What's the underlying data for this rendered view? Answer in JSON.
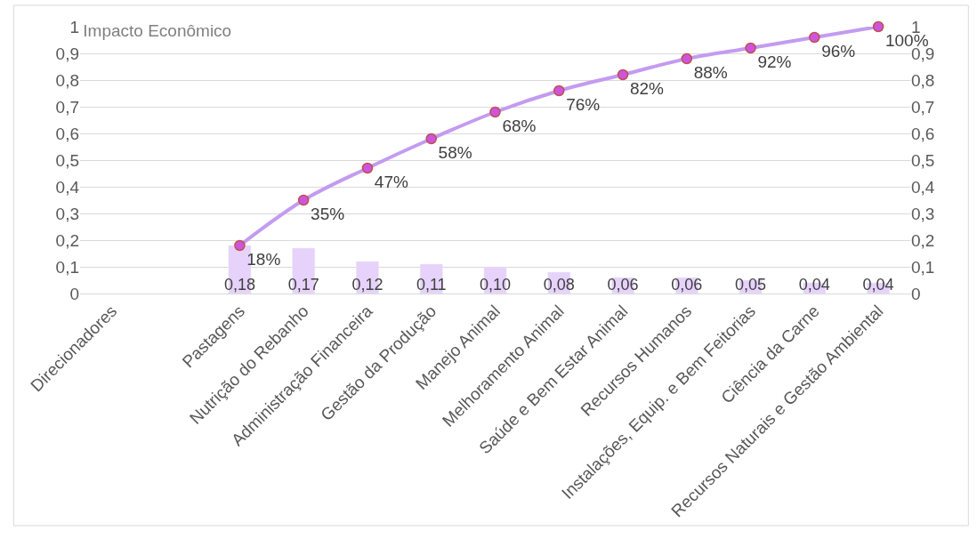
{
  "chart_data": {
    "type": "bar",
    "title": "Impacto Econômico",
    "categories": [
      "Direcionadores",
      null,
      "Pastagens",
      "Nutrição do Rebanho",
      "Administração Financeira",
      "Gestão da Produção",
      "Manejo Animal",
      "Melhoramento Animal",
      "Saúde e Bem Estar Animal",
      "Recursos Humanos",
      "Instalações, Equip. e Bem Feitorias",
      "Ciência da Carne",
      "Recursos Naturais e Gestão Ambiental"
    ],
    "series": [
      {
        "color": "#e6d2fa",
        "values": [
          null,
          null,
          0.18,
          0.17,
          0.12,
          0.11,
          0.1,
          0.08,
          0.06,
          0.06,
          0.05,
          0.04,
          0.04
        ],
        "value_labels": [
          null,
          null,
          "0,18",
          "0,17",
          "0,12",
          "0,11",
          "0,10",
          "0,08",
          "0,06",
          "0,06",
          "0,05",
          "0,04",
          "0,04"
        ]
      },
      {
        "type": "line",
        "axis": "y2",
        "color": "#c39bf0",
        "values": [
          null,
          null,
          0.18,
          0.35,
          0.47,
          0.58,
          0.68,
          0.76,
          0.82,
          0.88,
          0.92,
          0.96,
          1.0
        ],
        "value_labels": [
          null,
          null,
          "18%",
          "35%",
          "47%",
          "58%",
          "68%",
          "76%",
          "82%",
          "88%",
          "92%",
          "96%",
          "100%"
        ]
      }
    ],
    "ylim": [
      0,
      1
    ],
    "yticks": [
      0,
      {
        "value": 0.1,
        "label": "0,1"
      },
      {
        "value": 0.2,
        "label": "0,2"
      },
      {
        "value": 0.3,
        "label": "0,3"
      },
      {
        "value": 0.4,
        "label": "0,4"
      },
      {
        "value": 0.5,
        "label": "0,5"
      },
      {
        "value": 0.6,
        "label": "0,6"
      },
      {
        "value": 0.7,
        "label": "0,7"
      },
      {
        "value": 0.8,
        "label": "0,8"
      },
      {
        "value": 0.9,
        "label": "0,9"
      },
      1
    ],
    "y2lim": [
      0,
      1
    ],
    "y2ticks": [
      0,
      {
        "value": 0.1,
        "label": "0,1"
      },
      {
        "value": 0.2,
        "label": "0,2"
      },
      {
        "value": 0.3,
        "label": "0,3"
      },
      {
        "value": 0.4,
        "label": "0,4"
      },
      {
        "value": 0.5,
        "label": "0,5"
      },
      {
        "value": 0.6,
        "label": "0,6"
      },
      {
        "value": 0.7,
        "label": "0,7"
      },
      {
        "value": 0.8,
        "label": "0,8"
      },
      {
        "value": 0.9,
        "label": "0,9"
      },
      1
    ],
    "grid": "y",
    "marker": "circle"
  }
}
